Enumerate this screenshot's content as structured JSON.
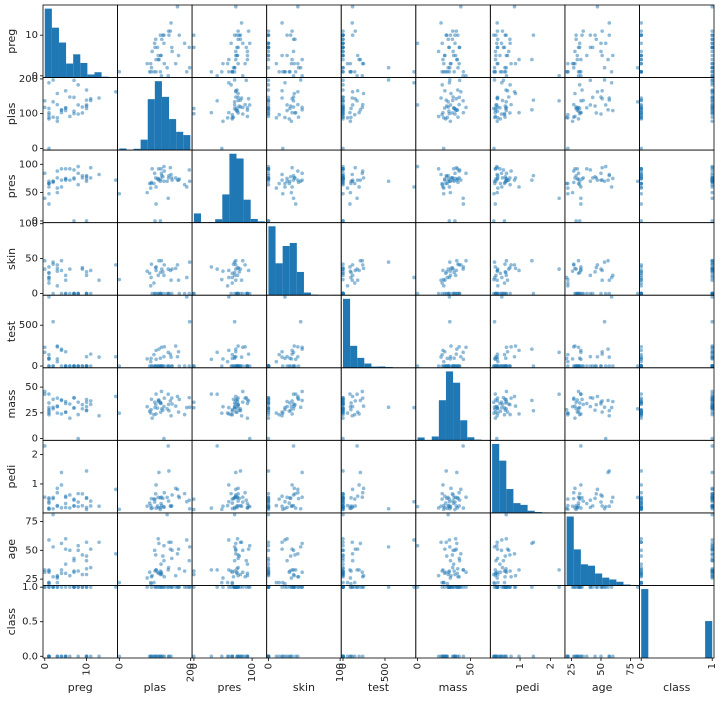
{
  "chart_data": {
    "type": "scatter_matrix",
    "color": "#1f77b4",
    "series": [
      {
        "name": "preg",
        "lim": [
          -0.425,
          17.425
        ],
        "yticks": [
          0,
          10
        ],
        "xticks": [
          0,
          10
        ],
        "bins": [
          0,
          1.7,
          3.4,
          5.1,
          6.8,
          8.5,
          10.2,
          11.9,
          13.6,
          15.3,
          17
        ],
        "counts": [
          246,
          178,
          125,
          50,
          83,
          52,
          11,
          19,
          3,
          1
        ],
        "values": [
          6,
          1,
          8,
          1,
          0,
          5,
          3,
          10,
          2,
          8,
          4,
          10,
          10,
          1,
          5,
          7,
          0,
          7,
          1,
          1,
          3,
          8,
          7,
          9,
          11,
          10,
          7,
          1,
          13,
          5,
          5,
          3,
          3,
          6,
          10,
          4,
          11,
          9,
          2,
          4,
          17,
          1,
          2
        ]
      },
      {
        "name": "plas",
        "lim": [
          -4.975,
          203.975
        ],
        "yticks": [
          0,
          100,
          200
        ],
        "xticks": [
          0,
          200
        ],
        "bins": [
          0,
          19.9,
          39.8,
          59.7,
          79.6,
          99.5,
          119.4,
          139.3,
          159.2,
          179.1,
          199
        ],
        "counts": [
          5,
          0,
          4,
          32,
          156,
          211,
          163,
          95,
          56,
          46
        ],
        "values": [
          148,
          85,
          183,
          89,
          137,
          116,
          78,
          115,
          197,
          125,
          110,
          168,
          139,
          189,
          166,
          100,
          118,
          107,
          103,
          115,
          126,
          99,
          196,
          119,
          143,
          125,
          147,
          97,
          145,
          117,
          109,
          158,
          88,
          92,
          122,
          103,
          138,
          102,
          90,
          111,
          163,
          0,
          134
        ]
      },
      {
        "name": "pres",
        "lim": [
          -3.05,
          125.05
        ],
        "yticks": [
          0,
          50,
          100
        ],
        "xticks": [
          0,
          100
        ],
        "bins": [
          0,
          12.2,
          24.4,
          36.6,
          48.8,
          61,
          73.2,
          85.4,
          97.6,
          109.8,
          122
        ],
        "counts": [
          35,
          1,
          2,
          13,
          107,
          261,
          243,
          87,
          14,
          5
        ],
        "values": [
          72,
          66,
          64,
          66,
          40,
          74,
          50,
          0,
          70,
          96,
          92,
          74,
          80,
          60,
          72,
          0,
          84,
          74,
          30,
          70,
          88,
          84,
          90,
          80,
          94,
          70,
          76,
          66,
          82,
          92,
          75,
          76,
          58,
          92,
          78,
          60,
          76,
          76,
          68,
          72,
          72,
          48,
          70
        ]
      },
      {
        "name": "skin",
        "lim": [
          -2.475,
          101.475
        ],
        "yticks": [
          0,
          50,
          100
        ],
        "xticks": [
          0,
          100
        ],
        "bins": [
          0,
          9.9,
          19.8,
          29.7,
          39.6,
          49.5,
          59.4,
          69.3,
          79.2,
          89.1,
          99
        ],
        "counts": [
          231,
          107,
          165,
          175,
          78,
          9,
          2,
          0,
          0,
          1
        ],
        "values": [
          35,
          29,
          0,
          23,
          35,
          0,
          32,
          0,
          45,
          0,
          0,
          0,
          0,
          23,
          19,
          0,
          47,
          0,
          38,
          30,
          41,
          0,
          0,
          35,
          33,
          26,
          0,
          15,
          19,
          0,
          26,
          36,
          11,
          0,
          31,
          33,
          0,
          37,
          42,
          47,
          41,
          20,
          0
        ]
      },
      {
        "name": "test",
        "lim": [
          -21.15,
          867.15
        ],
        "yticks": [
          0,
          500
        ],
        "xticks": [
          0,
          500
        ],
        "bins": [
          0,
          84.6,
          169.2,
          253.8,
          338.4,
          423,
          507.6,
          592.2,
          676.8,
          761.4,
          846
        ],
        "counts": [
          487,
          155,
          70,
          30,
          8,
          9,
          5,
          1,
          2,
          1
        ],
        "values": [
          0,
          0,
          0,
          94,
          168,
          0,
          88,
          0,
          543,
          0,
          0,
          0,
          0,
          846,
          175,
          0,
          230,
          0,
          83,
          96,
          235,
          0,
          0,
          0,
          146,
          115,
          0,
          140,
          110,
          0,
          0,
          245,
          54,
          0,
          0,
          192,
          0,
          0,
          0,
          207,
          114,
          0,
          0
        ]
      },
      {
        "name": "mass",
        "lim": [
          -1.6775,
          68.7775
        ],
        "yticks": [
          0,
          25,
          50
        ],
        "xticks": [
          0,
          50
        ],
        "bins": [
          0,
          6.71,
          13.42,
          20.13,
          26.84,
          33.55,
          40.26,
          46.97,
          53.68,
          60.39,
          67.1
        ],
        "counts": [
          11,
          0,
          15,
          156,
          268,
          224,
          78,
          12,
          3,
          1
        ],
        "values": [
          33.6,
          26.6,
          23.3,
          28.1,
          43.1,
          25.6,
          31.0,
          35.3,
          30.5,
          0.0,
          37.6,
          38.0,
          27.1,
          30.1,
          25.8,
          30.0,
          45.8,
          29.6,
          43.3,
          34.6,
          39.3,
          35.4,
          39.8,
          29.0,
          36.6,
          31.1,
          39.4,
          23.2,
          22.2,
          34.1,
          36.0,
          31.6,
          24.8,
          19.9,
          27.6,
          24.0,
          33.2,
          32.9,
          38.2,
          37.1,
          40.9,
          24.7,
          28.9
        ]
      },
      {
        "name": "pedi",
        "lim": [
          0.01945,
          2.47855
        ],
        "yticks": [
          1,
          2
        ],
        "xticks": [
          1,
          2
        ],
        "bins": [
          0.078,
          0.3122,
          0.5464,
          0.7806,
          1.0148,
          1.249,
          1.4832,
          1.7174,
          1.9516,
          2.1858,
          2.42
        ],
        "counts": [
          318,
          241,
          110,
          45,
          37,
          10,
          4,
          2,
          0,
          1
        ],
        "values": [
          0.627,
          0.351,
          0.672,
          0.167,
          2.288,
          0.201,
          0.248,
          0.134,
          0.158,
          0.232,
          0.191,
          0.537,
          1.441,
          0.398,
          0.587,
          0.484,
          0.551,
          0.254,
          0.183,
          0.529,
          0.704,
          0.388,
          0.451,
          0.263,
          0.254,
          0.205,
          0.257,
          0.487,
          0.245,
          0.337,
          0.546,
          0.851,
          0.267,
          0.188,
          0.512,
          0.966,
          0.42,
          0.665,
          0.503,
          1.39,
          0.817,
          0.14,
          0.542
        ]
      },
      {
        "name": "age",
        "lim": [
          19.5,
          82.5
        ],
        "yticks": [
          25,
          50,
          75
        ],
        "xticks": [
          25,
          50,
          75
        ],
        "bins": [
          21,
          27,
          33,
          39,
          45,
          51,
          57,
          63,
          69,
          75,
          81
        ],
        "counts": [
          300,
          157,
          92,
          86,
          52,
          34,
          26,
          16,
          4,
          1
        ],
        "values": [
          50,
          31,
          32,
          21,
          33,
          30,
          26,
          29,
          53,
          54,
          30,
          34,
          57,
          59,
          51,
          32,
          31,
          31,
          33,
          32,
          27,
          50,
          41,
          29,
          51,
          41,
          43,
          22,
          57,
          38,
          60,
          28,
          22,
          28,
          45,
          33,
          35,
          46,
          27,
          56,
          47,
          22,
          81
        ]
      },
      {
        "name": "class",
        "lim": [
          -0.025,
          1.025
        ],
        "yticks": [
          {
            "value": 0,
            "label": "0.0"
          },
          {
            "value": 0.5,
            "label": "0.5"
          },
          {
            "value": 1,
            "label": "1.0"
          }
        ],
        "xticks": [
          0,
          1
        ],
        "bins": [
          0,
          0.1,
          0.2,
          0.3,
          0.4,
          0.5,
          0.6,
          0.7,
          0.8,
          0.9,
          1
        ],
        "counts": [
          500,
          0,
          0,
          0,
          0,
          0,
          0,
          0,
          0,
          268
        ],
        "values": [
          1,
          0,
          1,
          0,
          1,
          0,
          1,
          0,
          1,
          1,
          0,
          1,
          0,
          1,
          1,
          1,
          1,
          1,
          0,
          1,
          0,
          0,
          1,
          1,
          1,
          1,
          1,
          0,
          0,
          0,
          0,
          1,
          0,
          0,
          0,
          0,
          0,
          1,
          1,
          1,
          1,
          0,
          1
        ]
      }
    ]
  }
}
